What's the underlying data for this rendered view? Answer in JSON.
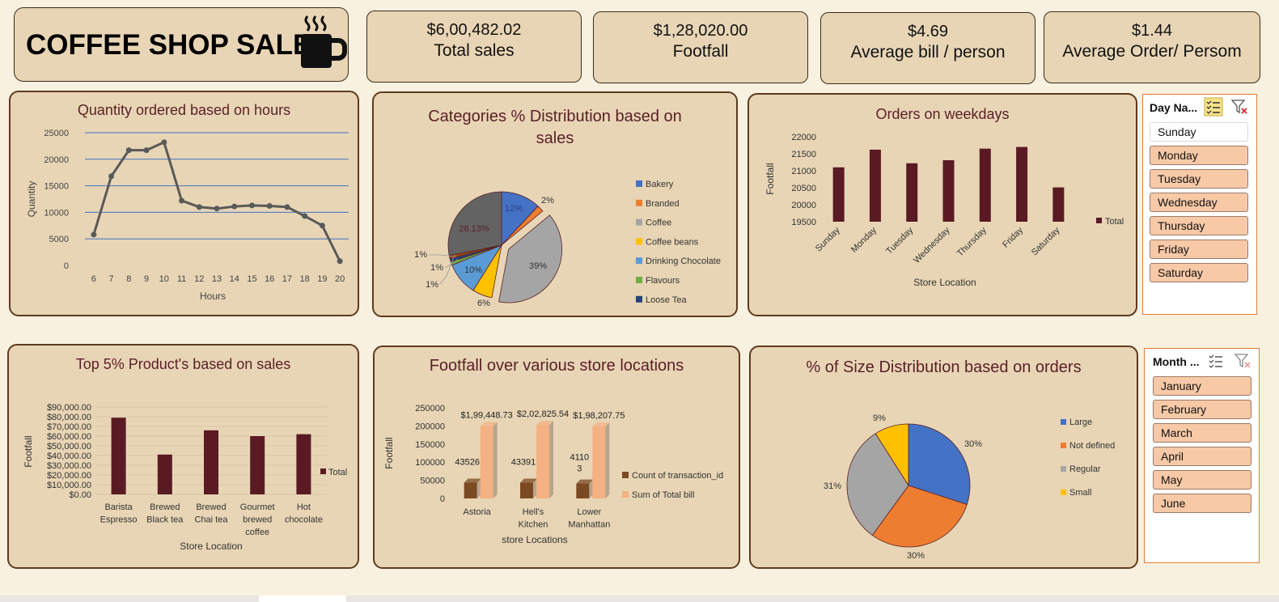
{
  "header": {
    "title": "COFFEE SHOP SALES",
    "icon": "coffee-mug-icon"
  },
  "kpis": [
    {
      "value": "$6,00,482.02",
      "label": "Total sales"
    },
    {
      "value": "$1,28,020.00",
      "label": "Footfall"
    },
    {
      "value": "$4.69",
      "label": "Average bill / person"
    },
    {
      "value": "$1.44",
      "label": "Average Order/ Persom"
    }
  ],
  "slicers": {
    "day": {
      "title": "Day Na...",
      "items": [
        "Sunday",
        "Monday",
        "Tuesday",
        "Wednesday",
        "Thursday",
        "Friday",
        "Saturday"
      ],
      "selected": "Sunday"
    },
    "month": {
      "title": "Month ...",
      "items": [
        "January",
        "February",
        "March",
        "April",
        "May",
        "June"
      ],
      "selected": ""
    }
  },
  "chart_data": [
    {
      "id": "hours",
      "type": "line",
      "title": "Quantity ordered based on hours",
      "xlabel": "Hours",
      "ylabel": "Quantity",
      "x": [
        "6",
        "7",
        "8",
        "9",
        "10",
        "11",
        "12",
        "13",
        "14",
        "15",
        "16",
        "17",
        "18",
        "19",
        "20"
      ],
      "values": [
        5800,
        16800,
        21700,
        21700,
        23200,
        12200,
        11000,
        10700,
        11100,
        11300,
        11200,
        11000,
        9300,
        7500,
        800
      ],
      "ylim": [
        0,
        25000
      ],
      "yticks": [
        "0",
        "5000",
        "10000",
        "15000",
        "20000",
        "25000"
      ],
      "grid": true,
      "colors": {
        "line": "#595959",
        "grid": "#4472c4"
      }
    },
    {
      "id": "categories",
      "type": "pie",
      "title": "Categories % Distribution based on sales",
      "legend_position": "right",
      "slices": [
        {
          "name": "Bakery",
          "value": 12,
          "label": "12%",
          "color": "#4472c4"
        },
        {
          "name": "Branded",
          "value": 2,
          "label": "2%",
          "color": "#ed7d31"
        },
        {
          "name": "Coffee",
          "value": 39,
          "label": "39%",
          "color": "#a5a5a5"
        },
        {
          "name": "Coffee beans",
          "value": 6,
          "label": "6%",
          "color": "#ffc000"
        },
        {
          "name": "Drinking Chocolate",
          "value": 10,
          "label": "10%",
          "color": "#5b9bd5"
        },
        {
          "name": "Flavours",
          "value": 1,
          "label": "1%",
          "color": "#70ad47"
        },
        {
          "name": "Loose Tea",
          "value": 1,
          "label": "1%",
          "color": "#264478"
        },
        {
          "name": "",
          "value": 1,
          "label": "1%",
          "color": "#9e480e"
        },
        {
          "name": "",
          "value": 28.13,
          "label": "28.13%",
          "color": "#636363"
        }
      ]
    },
    {
      "id": "weekdays",
      "type": "bar",
      "title": "Orders on weekdays",
      "xlabel": "Store Location",
      "ylabel": "Footfall",
      "categories": [
        "Sunday",
        "Monday",
        "Tuesday",
        "Wednesday",
        "Thursday",
        "Friday",
        "Saturday"
      ],
      "series": [
        {
          "name": "Total",
          "values": [
            21100,
            21620,
            21220,
            21310,
            21650,
            21700,
            20510
          ]
        }
      ],
      "ylim": [
        19500,
        22000
      ],
      "yticks": [
        "19500",
        "20000",
        "20500",
        "21000",
        "21500",
        "22000"
      ],
      "legend_position": "right",
      "colors": {
        "bar": "#5a1a24"
      }
    },
    {
      "id": "products",
      "type": "bar",
      "title": "Top 5% Product's based on sales",
      "xlabel": "Store Location",
      "ylabel": "Footfall",
      "categories": [
        [
          "Barista",
          "Espresso"
        ],
        [
          "Brewed",
          "Black tea"
        ],
        [
          "Brewed",
          "Chai tea"
        ],
        [
          "Gourmet",
          "brewed",
          "coffee"
        ],
        [
          "Hot",
          "chocolate"
        ]
      ],
      "series": [
        {
          "name": "Total",
          "values": [
            79000,
            41000,
            66000,
            60000,
            62000
          ]
        }
      ],
      "ylim": [
        0,
        90000
      ],
      "yticks": [
        "$0.00",
        "$10,000.00",
        "$20,000.00",
        "$30,000.00",
        "$40,000.00",
        "$50,000.00",
        "$60,000.00",
        "$70,000.00",
        "$80,000.00",
        "$90,000.00"
      ],
      "legend_position": "right",
      "colors": {
        "bar": "#5a1a24"
      }
    },
    {
      "id": "locations",
      "type": "bar",
      "title": "Footfall over various store locations",
      "xlabel": "store Locations",
      "ylabel": "Footfall",
      "categories": [
        [
          "Astoria"
        ],
        [
          "Hell's",
          "Kitchen"
        ],
        [
          "Lower",
          "Manhattan"
        ]
      ],
      "series": [
        {
          "name": "Count of transaction_id",
          "values": [
            43526,
            43391,
            41103
          ],
          "labels": [
            [
              "43526"
            ],
            [
              "43391"
            ],
            [
              "4110",
              "3"
            ]
          ],
          "color": "#7b4a22"
        },
        {
          "name": "Sum of Total bill",
          "values": [
            199448.73,
            202825.54,
            198207.75
          ],
          "labels": [
            [
              "$1,99,448.73"
            ],
            [
              "$2,02,825.54"
            ],
            [
              "$1,98,207.75"
            ]
          ],
          "color": "#f4b183"
        }
      ],
      "ylim": [
        0,
        250000
      ],
      "yticks": [
        "0",
        "50000",
        "100000",
        "150000",
        "200000",
        "250000"
      ],
      "legend_position": "right"
    },
    {
      "id": "sizes",
      "type": "pie",
      "title": "% of Size Distribution based on orders",
      "legend_position": "right",
      "slices": [
        {
          "name": "Large",
          "value": 30,
          "label": "30%",
          "color": "#4472c4"
        },
        {
          "name": "Not defined",
          "value": 30,
          "label": "30%",
          "color": "#ed7d31"
        },
        {
          "name": "Regular",
          "value": 31,
          "label": "31%",
          "color": "#a5a5a5"
        },
        {
          "name": "Small",
          "value": 9,
          "label": "9%",
          "color": "#ffc000"
        }
      ]
    }
  ]
}
